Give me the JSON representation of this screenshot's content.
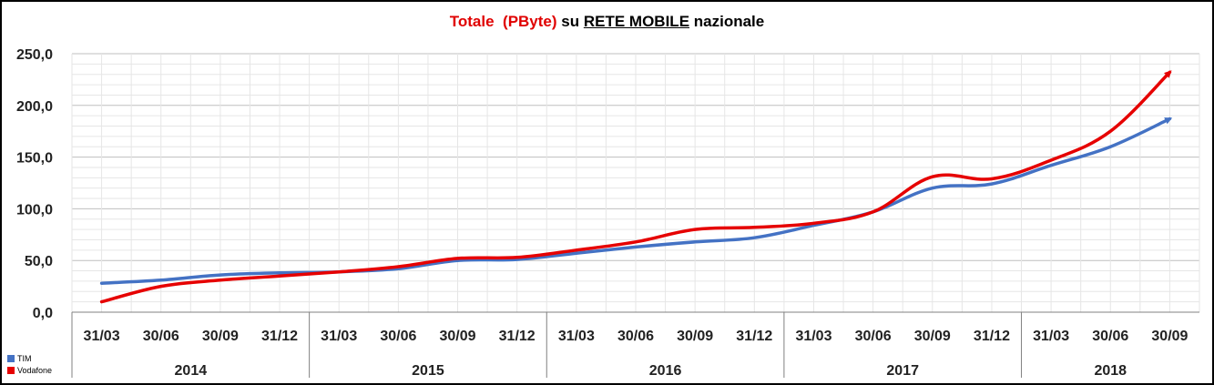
{
  "title": {
    "part1": "Totale",
    "part2": "(PByte)",
    "part3": "su",
    "part4": "RETE MOBILE",
    "part5": "nazionale"
  },
  "colors": {
    "tim": "#4472c4",
    "vodafone": "#e60000",
    "grid": "#d9d9d9",
    "title_accent": "#e00000"
  },
  "chart_data": {
    "type": "line",
    "title": "Totale (PByte) su RETE MOBILE nazionale",
    "x": [
      "31/03",
      "30/06",
      "30/09",
      "31/12",
      "31/03",
      "30/06",
      "30/09",
      "31/12",
      "31/03",
      "30/06",
      "30/09",
      "31/12",
      "31/03",
      "30/06",
      "30/09",
      "31/12",
      "31/03",
      "30/06",
      "30/09"
    ],
    "years": [
      {
        "label": "2014",
        "count": 4
      },
      {
        "label": "2015",
        "count": 4
      },
      {
        "label": "2016",
        "count": 4
      },
      {
        "label": "2017",
        "count": 4
      },
      {
        "label": "2018",
        "count": 3
      }
    ],
    "yticks": [
      "0,0",
      "50,0",
      "100,0",
      "150,0",
      "200,0",
      "250,0"
    ],
    "ylim": [
      0,
      250
    ],
    "grid": true,
    "legend_position": "bottom-left",
    "series": [
      {
        "name": "TIM",
        "color": "#4472c4",
        "values": [
          28,
          31,
          36,
          38,
          39,
          42,
          50,
          51,
          57,
          63,
          68,
          72,
          84,
          97,
          120,
          124,
          142,
          160,
          187
        ]
      },
      {
        "name": "Vodafone",
        "color": "#e60000",
        "values": [
          10,
          25,
          31,
          35,
          39,
          44,
          52,
          53,
          60,
          68,
          80,
          82,
          86,
          97,
          131,
          129,
          147,
          175,
          232
        ]
      }
    ]
  }
}
